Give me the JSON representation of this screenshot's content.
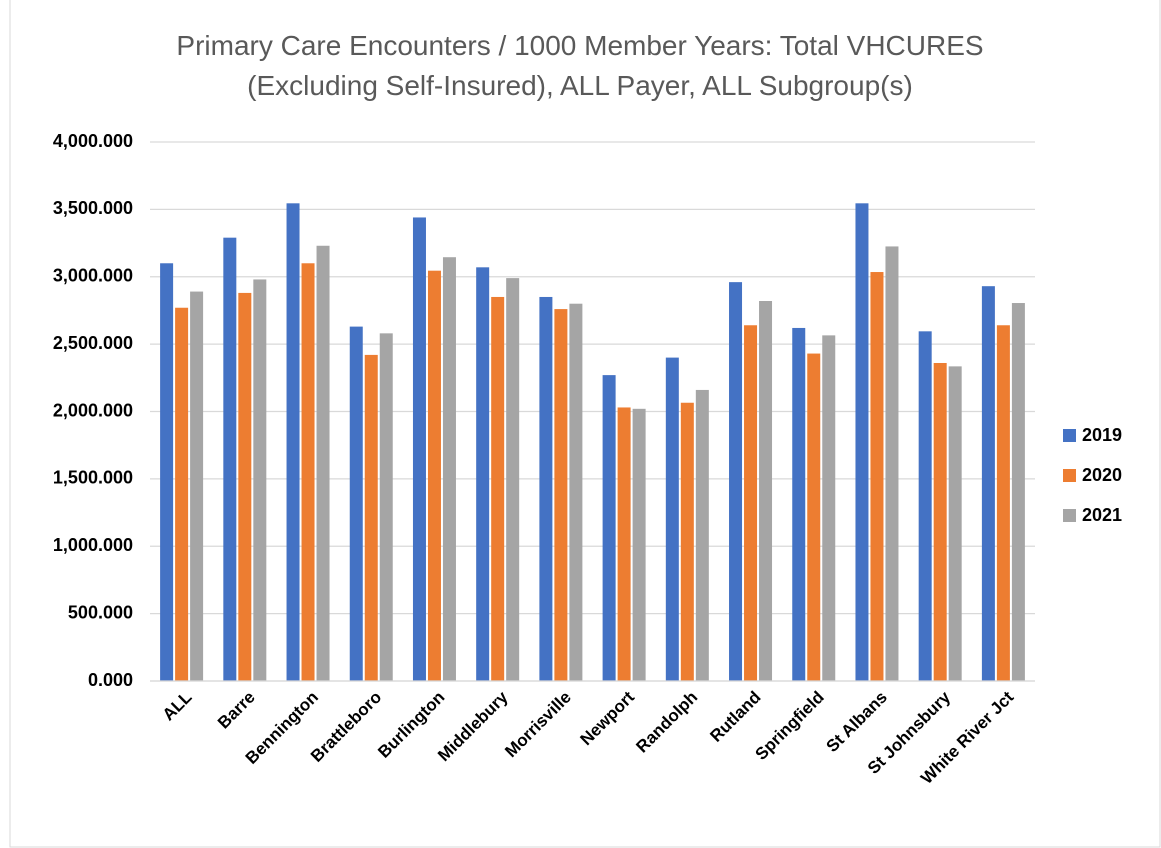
{
  "chart_data": {
    "type": "bar",
    "title": "Primary Care Encounters / 1000 Member Years: Total VHCURES (Excluding Self-Insured), ALL Payer, ALL Subgroup(s)",
    "categories": [
      "ALL",
      "Barre",
      "Bennington",
      "Brattleboro",
      "Burlington",
      "Middlebury",
      "Morrisville",
      "Newport",
      "Randolph",
      "Rutland",
      "Springfield",
      "St Albans",
      "St Johnsbury",
      "White River Jct"
    ],
    "series": [
      {
        "name": "2019",
        "color": "#4472c4",
        "values": [
          3100,
          3290,
          3545,
          2630,
          3440,
          3070,
          2850,
          2270,
          2400,
          2960,
          2620,
          3545,
          2595,
          2930
        ]
      },
      {
        "name": "2020",
        "color": "#ed7d31",
        "values": [
          2770,
          2880,
          3100,
          2420,
          3045,
          2850,
          2760,
          2030,
          2065,
          2640,
          2430,
          3035,
          2360,
          2640
        ]
      },
      {
        "name": "2021",
        "color": "#a5a5a5",
        "values": [
          2890,
          2980,
          3230,
          2580,
          3145,
          2990,
          2800,
          2020,
          2160,
          2820,
          2565,
          3225,
          2335,
          2805
        ]
      }
    ],
    "ylim": [
      0,
      4000
    ],
    "yticks": [
      {
        "value": 0,
        "label": "0.000"
      },
      {
        "value": 500,
        "label": "500.000"
      },
      {
        "value": 1000,
        "label": "1,000.000"
      },
      {
        "value": 1500,
        "label": "1,500.000"
      },
      {
        "value": 2000,
        "label": "2,000.000"
      },
      {
        "value": 2500,
        "label": "2,500.000"
      },
      {
        "value": 3000,
        "label": "3,000.000"
      },
      {
        "value": 3500,
        "label": "3,500.000"
      },
      {
        "value": 4000,
        "label": "4,000.000"
      }
    ],
    "grid": true,
    "legend": "right"
  }
}
